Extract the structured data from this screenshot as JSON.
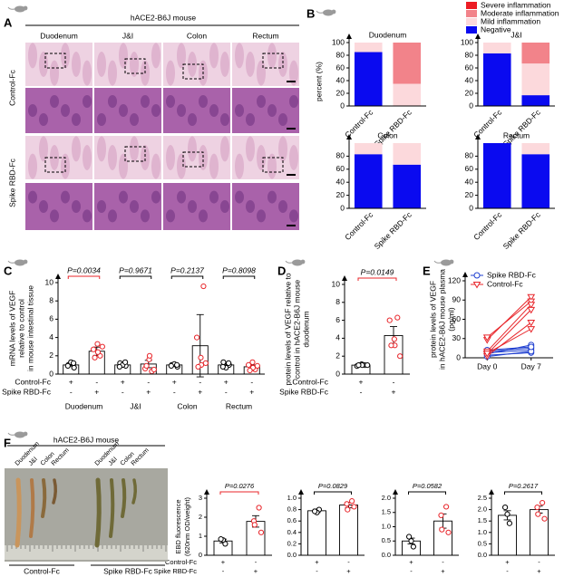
{
  "panel_labels": [
    "A",
    "B",
    "C",
    "D",
    "E",
    "F"
  ],
  "histology": {
    "title": "hACE2-B6J mouse",
    "columns": [
      "Duodenum",
      "J&I",
      "Colon",
      "Rectum"
    ],
    "rows": [
      "Control-Fc",
      "Spike RBD-Fc"
    ]
  },
  "photo": {
    "title": "hACE2-B6J mouse",
    "tissues": [
      "Duodenum",
      "J&I",
      "Colon",
      "Rectum"
    ],
    "groups": [
      "Control-Fc",
      "Spike RBD-Fc"
    ]
  },
  "chart_data": [
    {
      "type": "stacked_bar",
      "ylabel": "percent (%)",
      "series": [
        {
          "name": "Negative",
          "color": "#0a0af0"
        },
        {
          "name": "Mild inflammation",
          "color": "#fcd9dc"
        },
        {
          "name": "Moderate inflammation",
          "color": "#f2838a"
        },
        {
          "name": "Severe inflammation",
          "color": "#ec1c24"
        }
      ],
      "panels": [
        {
          "title": "Duodenum",
          "categories": [
            "Control-Fc",
            "Spike RBD-Fc"
          ],
          "ylim": [
            0,
            100
          ],
          "yticks": [
            0,
            20,
            40,
            60,
            80,
            100
          ],
          "values": [
            [
              85,
              0
            ],
            [
              15,
              35
            ],
            [
              0,
              65
            ],
            [
              0,
              0
            ]
          ]
        },
        {
          "title": "J&I",
          "categories": [
            "Control-Fc",
            "Spike RBD-Fc"
          ],
          "ylim": [
            0,
            100
          ],
          "yticks": [
            0,
            20,
            40,
            60,
            80,
            100
          ],
          "values": [
            [
              83,
              17
            ],
            [
              17,
              50
            ],
            [
              0,
              33
            ],
            [
              0,
              0
            ]
          ]
        },
        {
          "title": "Colon",
          "categories": [
            "Control-Fc",
            "Spike RBD-Fc"
          ],
          "ylim": [
            0,
            100
          ],
          "yticks": [
            0,
            20,
            40,
            60,
            80
          ],
          "values": [
            [
              83,
              67
            ],
            [
              17,
              33
            ],
            [
              0,
              0
            ],
            [
              0,
              0
            ]
          ]
        },
        {
          "title": "Rectum",
          "categories": [
            "Control-Fc",
            "Spike RBD-Fc"
          ],
          "ylim": [
            0,
            100
          ],
          "yticks": [
            0,
            20,
            40,
            60,
            80
          ],
          "values": [
            [
              100,
              83
            ],
            [
              0,
              17
            ],
            [
              0,
              0
            ],
            [
              0,
              0
            ]
          ]
        }
      ]
    },
    {
      "type": "bar_scatter",
      "ylabel": [
        "mRNA levels  of VEGF",
        "relative to control",
        "in mouse  intestinal tissue"
      ],
      "ylim": [
        0,
        10
      ],
      "yticks": [
        0,
        2,
        4,
        6,
        8,
        10
      ],
      "groups": [
        "Duodenum",
        "J&I",
        "Colon",
        "Rectum"
      ],
      "p_values": [
        "P=0.0034",
        "P=0.9671",
        "P=0.2137",
        "P=0.8098"
      ],
      "p_colors": [
        "#e8252a",
        "#000000",
        "#000000",
        "#000000"
      ],
      "rows": [
        {
          "label": "Control-Fc",
          "marks": [
            "+",
            "-",
            "+",
            "-",
            "+",
            "-",
            "+",
            "-"
          ]
        },
        {
          "label": "Spike RBD-Fc",
          "marks": [
            "-",
            "+",
            "-",
            "+",
            "-",
            "+",
            "-",
            "+"
          ]
        }
      ],
      "series": [
        {
          "color": "#000000",
          "values": [
            1.0,
            1.0,
            1.0,
            1.0
          ],
          "errors": [
            0.12,
            0.1,
            0.06,
            0.12
          ],
          "points": [
            [
              0.7,
              1.0,
              1.3,
              1.2,
              0.9
            ],
            [
              0.9,
              1.2,
              1.0,
              1.3,
              0.8
            ],
            [
              0.8,
              1.0,
              1.1,
              1.0,
              0.9
            ],
            [
              1.0,
              1.3,
              0.7,
              1.2,
              0.8
            ]
          ]
        },
        {
          "color": "#e8252a",
          "values": [
            2.5,
            1.1,
            3.1,
            0.8
          ],
          "errors": [
            0.45,
            0.4,
            3.4,
            0.2
          ],
          "points": [
            [
              2.0,
              2.7,
              3.3,
              2.4,
              1.8,
              3.0
            ],
            [
              0.3,
              0.6,
              1.6,
              2.0,
              0.9,
              0.5
            ],
            [
              9.6,
              4.0,
              1.8,
              1.0,
              0.8,
              1.2
            ],
            [
              0.5,
              1.0,
              1.3,
              0.7,
              0.4,
              0.9
            ]
          ]
        }
      ]
    },
    {
      "type": "bar_scatter",
      "ylabel": [
        "protein levels of VEGF relative to",
        "control in hACE2-B6J mouse",
        "duodenum"
      ],
      "ylim": [
        0,
        10
      ],
      "yticks": [
        0,
        2,
        4,
        6,
        8,
        10
      ],
      "p_values": [
        "P=0.0149"
      ],
      "p_colors": [
        "#e8252a"
      ],
      "rows": [
        {
          "label": "Control-Fc",
          "marks": [
            "+",
            "-"
          ]
        },
        {
          "label": "Spike RBD-Fc",
          "marks": [
            "-",
            "+"
          ]
        }
      ],
      "series": [
        {
          "color": "#000000",
          "values": [
            1.0
          ],
          "errors": [
            0.05
          ],
          "points": [
            [
              1.0,
              0.9,
              1.1,
              1.0,
              1.0,
              1.0
            ]
          ]
        },
        {
          "color": "#e8252a",
          "values": [
            4.3
          ],
          "errors": [
            1.0
          ],
          "points": [
            [
              6.3,
              6.0,
              3.9,
              3.2,
              3.2,
              2.0
            ]
          ]
        }
      ]
    },
    {
      "type": "paired_line",
      "ylabel": [
        "protein levels of VEGF",
        "in hACE2-B6J mouse plasma",
        "(pg/ml)"
      ],
      "categories": [
        "Day 0",
        "Day 7"
      ],
      "ylim": [
        0,
        120
      ],
      "yticks": [
        0,
        30,
        60,
        90,
        120
      ],
      "series": [
        {
          "name": "Spike RBD-Fc",
          "color": "#1f3fd0",
          "marker": "circle",
          "values": [
            [
              4,
              8
            ],
            [
              8,
              12
            ],
            [
              10,
              15
            ],
            [
              6,
              20
            ],
            [
              2,
              10
            ],
            [
              12,
              17
            ]
          ]
        },
        {
          "name": "Control-Fc",
          "color": "#e8252a",
          "marker": "triangle",
          "values": [
            [
              28,
              95
            ],
            [
              32,
              88
            ],
            [
              10,
              83
            ],
            [
              6,
              75
            ],
            [
              3,
              55
            ],
            [
              7,
              45
            ]
          ]
        }
      ]
    },
    {
      "type": "bar_scatter",
      "ylabel": [
        "EBD fluorescence",
        "(620nm OD/weight)"
      ],
      "ylim": [
        0,
        3
      ],
      "yticks": [
        0,
        1,
        2,
        3
      ],
      "p_values": [
        "P=0.0276"
      ],
      "p_colors": [
        "#e8252a"
      ],
      "rows": [
        {
          "label": "Control-Fc",
          "marks": [
            "+",
            "-"
          ]
        },
        {
          "label": "Spike RBD-Fc",
          "marks": [
            "-",
            "+"
          ]
        }
      ],
      "series": [
        {
          "color": "#000000",
          "values": [
            0.75
          ],
          "errors": [
            0.1
          ],
          "points": [
            [
              0.6,
              0.8,
              0.85
            ]
          ]
        },
        {
          "color": "#e8252a",
          "values": [
            1.78
          ],
          "errors": [
            0.3
          ],
          "points": [
            [
              2.5,
              1.8,
              1.6,
              1.2
            ]
          ]
        }
      ]
    },
    {
      "type": "bar_scatter",
      "ylim": [
        0,
        1
      ],
      "yticks": [
        {
          "value": 0,
          "label": "0.0"
        },
        0.2,
        0.4,
        0.6,
        0.8,
        {
          "value": 1,
          "label": "1.0"
        }
      ],
      "p_values": [
        "P=0.0829"
      ],
      "p_colors": [
        "#000000"
      ],
      "rows": [
        {
          "marks": [
            "+",
            "-"
          ]
        },
        {
          "marks": [
            "-",
            "+"
          ]
        }
      ],
      "series": [
        {
          "color": "#000000",
          "values": [
            0.78
          ],
          "errors": [
            0.03
          ],
          "points": [
            [
              0.8,
              0.75,
              0.77
            ]
          ]
        },
        {
          "color": "#e8252a",
          "values": [
            0.88
          ],
          "errors": [
            0.05
          ],
          "points": [
            [
              0.95,
              0.9,
              0.8,
              0.85
            ]
          ]
        }
      ]
    },
    {
      "type": "bar_scatter",
      "ylim": [
        0,
        2
      ],
      "yticks": [
        {
          "value": 0,
          "label": "0.0"
        },
        0.5,
        {
          "value": 1,
          "label": "1.0"
        },
        1.5,
        {
          "value": 2,
          "label": "2.0"
        }
      ],
      "p_values": [
        "P=0.0582"
      ],
      "p_colors": [
        "#000000"
      ],
      "rows": [
        {
          "marks": [
            "+",
            "-"
          ]
        },
        {
          "marks": [
            "-",
            "+"
          ]
        }
      ],
      "series": [
        {
          "color": "#000000",
          "values": [
            0.5
          ],
          "errors": [
            0.1
          ],
          "points": [
            [
              0.3,
              0.5,
              0.65
            ]
          ]
        },
        {
          "color": "#e8252a",
          "values": [
            1.2
          ],
          "errors": [
            0.25
          ],
          "points": [
            [
              1.7,
              1.4,
              0.9,
              0.8
            ]
          ]
        }
      ]
    },
    {
      "type": "bar_scatter",
      "ylim": [
        0,
        2.5
      ],
      "yticks": [
        {
          "value": 0,
          "label": "0.0"
        },
        0.5,
        {
          "value": 1,
          "label": "1.0"
        },
        1.5,
        {
          "value": 2,
          "label": "2.0"
        },
        2.5
      ],
      "p_values": [
        "P=0.2617"
      ],
      "p_colors": [
        "#000000"
      ],
      "rows": [
        {
          "marks": [
            "+",
            "-"
          ]
        },
        {
          "marks": [
            "-",
            "+"
          ]
        }
      ],
      "series": [
        {
          "color": "#000000",
          "values": [
            1.75
          ],
          "errors": [
            0.2
          ],
          "points": [
            [
              1.4,
              1.8,
              2.1
            ]
          ]
        },
        {
          "color": "#e8252a",
          "values": [
            2.0
          ],
          "errors": [
            0.15
          ],
          "points": [
            [
              2.3,
              2.1,
              1.8,
              1.6
            ]
          ]
        }
      ]
    }
  ]
}
